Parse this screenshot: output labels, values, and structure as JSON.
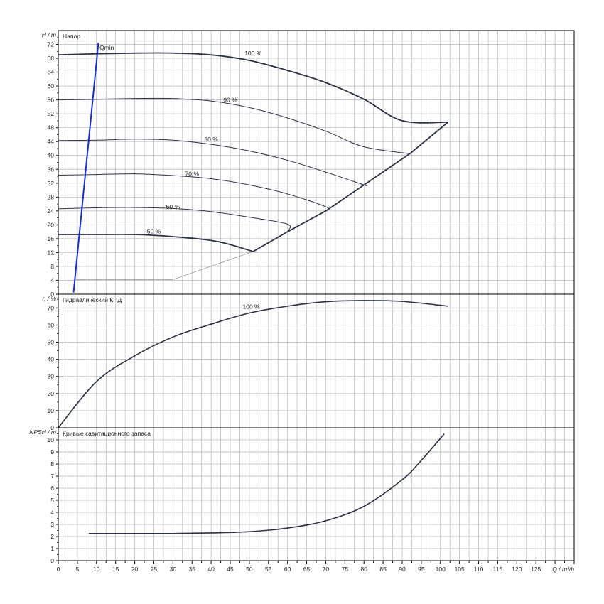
{
  "chart_data": [
    {
      "type": "line",
      "title": "Напор",
      "ylabel": "H / m",
      "xlim": [
        0,
        135
      ],
      "ylim": [
        0,
        76
      ],
      "yticks": [
        0,
        4,
        8,
        12,
        16,
        20,
        24,
        28,
        32,
        36,
        40,
        44,
        48,
        52,
        56,
        60,
        64,
        68,
        72
      ],
      "grid": true,
      "series": [
        {
          "name": "100 %",
          "x": [
            0,
            10,
            20,
            30,
            40,
            50,
            60,
            70,
            80,
            90,
            102
          ],
          "y": [
            69,
            69.3,
            69.5,
            69.5,
            69,
            67.4,
            64.5,
            61,
            56.2,
            50,
            49.6
          ]
        },
        {
          "name": "90 %",
          "x": [
            0,
            10,
            20,
            30,
            40,
            50,
            60,
            70,
            80,
            92
          ],
          "y": [
            56,
            56.2,
            56.4,
            56.4,
            55.7,
            53.8,
            50.8,
            47,
            42.5,
            40.5
          ]
        },
        {
          "name": "80 %",
          "x": [
            0,
            10,
            20,
            30,
            40,
            50,
            60,
            70,
            80,
            80
          ],
          "y": [
            44.3,
            44.4,
            44.7,
            44.4,
            43.2,
            41.3,
            38.6,
            35.2,
            31.5,
            31.5
          ]
        },
        {
          "name": "70 %",
          "x": [
            0,
            10,
            20,
            30,
            40,
            50,
            60,
            70,
            70
          ],
          "y": [
            34.3,
            34.5,
            34.7,
            34.2,
            33.3,
            31.5,
            28.9,
            25.2,
            24
          ]
        },
        {
          "name": "60 %",
          "x": [
            0,
            10,
            20,
            30,
            40,
            50,
            60,
            60
          ],
          "y": [
            24.6,
            24.9,
            25,
            24.7,
            23.8,
            22.2,
            20.2,
            18
          ]
        },
        {
          "name": "50 %",
          "x": [
            0,
            10,
            20,
            30,
            40,
            45,
            51
          ],
          "y": [
            17.2,
            17.2,
            17.2,
            16.6,
            15.5,
            14.3,
            12.3
          ]
        },
        {
          "name": "boundary",
          "x": [
            51,
            60,
            70,
            80,
            92,
            102
          ],
          "y": [
            12.3,
            18,
            24,
            31.5,
            40.5,
            49.6
          ]
        },
        {
          "name": "min speed",
          "x": [
            4,
            30,
            51
          ],
          "y": [
            4.2,
            4.2,
            12.3
          ]
        },
        {
          "name": "Qmin",
          "x": [
            4,
            10.5
          ],
          "y": [
            0.5,
            72.5
          ]
        }
      ],
      "annotations": [
        "Qmin",
        "100 %",
        "90 %",
        "80 %",
        "70 %",
        "60 %",
        "50 %"
      ]
    },
    {
      "type": "line",
      "title": "Гидравлический КПД",
      "ylabel": "η / %",
      "xlim": [
        0,
        135
      ],
      "ylim": [
        0,
        78
      ],
      "yticks": [
        0,
        10,
        20,
        30,
        40,
        50,
        60,
        70
      ],
      "grid": true,
      "series": [
        {
          "name": "100 %",
          "x": [
            0,
            10,
            20,
            30,
            40,
            50,
            60,
            70,
            80,
            90,
            102
          ],
          "y": [
            0,
            27,
            42,
            53,
            60.5,
            67,
            71,
            73.6,
            74.3,
            73.8,
            71
          ]
        }
      ]
    },
    {
      "type": "line",
      "title": "Кривые кавитационного запаса",
      "ylabel": "NPSH / m",
      "xlabel": "Q / m³/h",
      "xlim": [
        0,
        135
      ],
      "ylim": [
        0,
        11
      ],
      "xticks": [
        0,
        5,
        10,
        15,
        20,
        25,
        30,
        35,
        40,
        45,
        50,
        55,
        60,
        65,
        70,
        75,
        80,
        85,
        90,
        95,
        100,
        105,
        110,
        115,
        120,
        125
      ],
      "yticks": [
        0,
        1,
        2,
        3,
        4,
        5,
        6,
        7,
        8,
        9,
        10
      ],
      "grid": true,
      "series": [
        {
          "name": "NPSH",
          "x": [
            8,
            20,
            30,
            40,
            50,
            60,
            70,
            80,
            90,
            95,
            101
          ],
          "y": [
            2.25,
            2.25,
            2.25,
            2.3,
            2.4,
            2.7,
            3.3,
            4.5,
            6.7,
            8.3,
            10.5
          ]
        }
      ]
    }
  ]
}
